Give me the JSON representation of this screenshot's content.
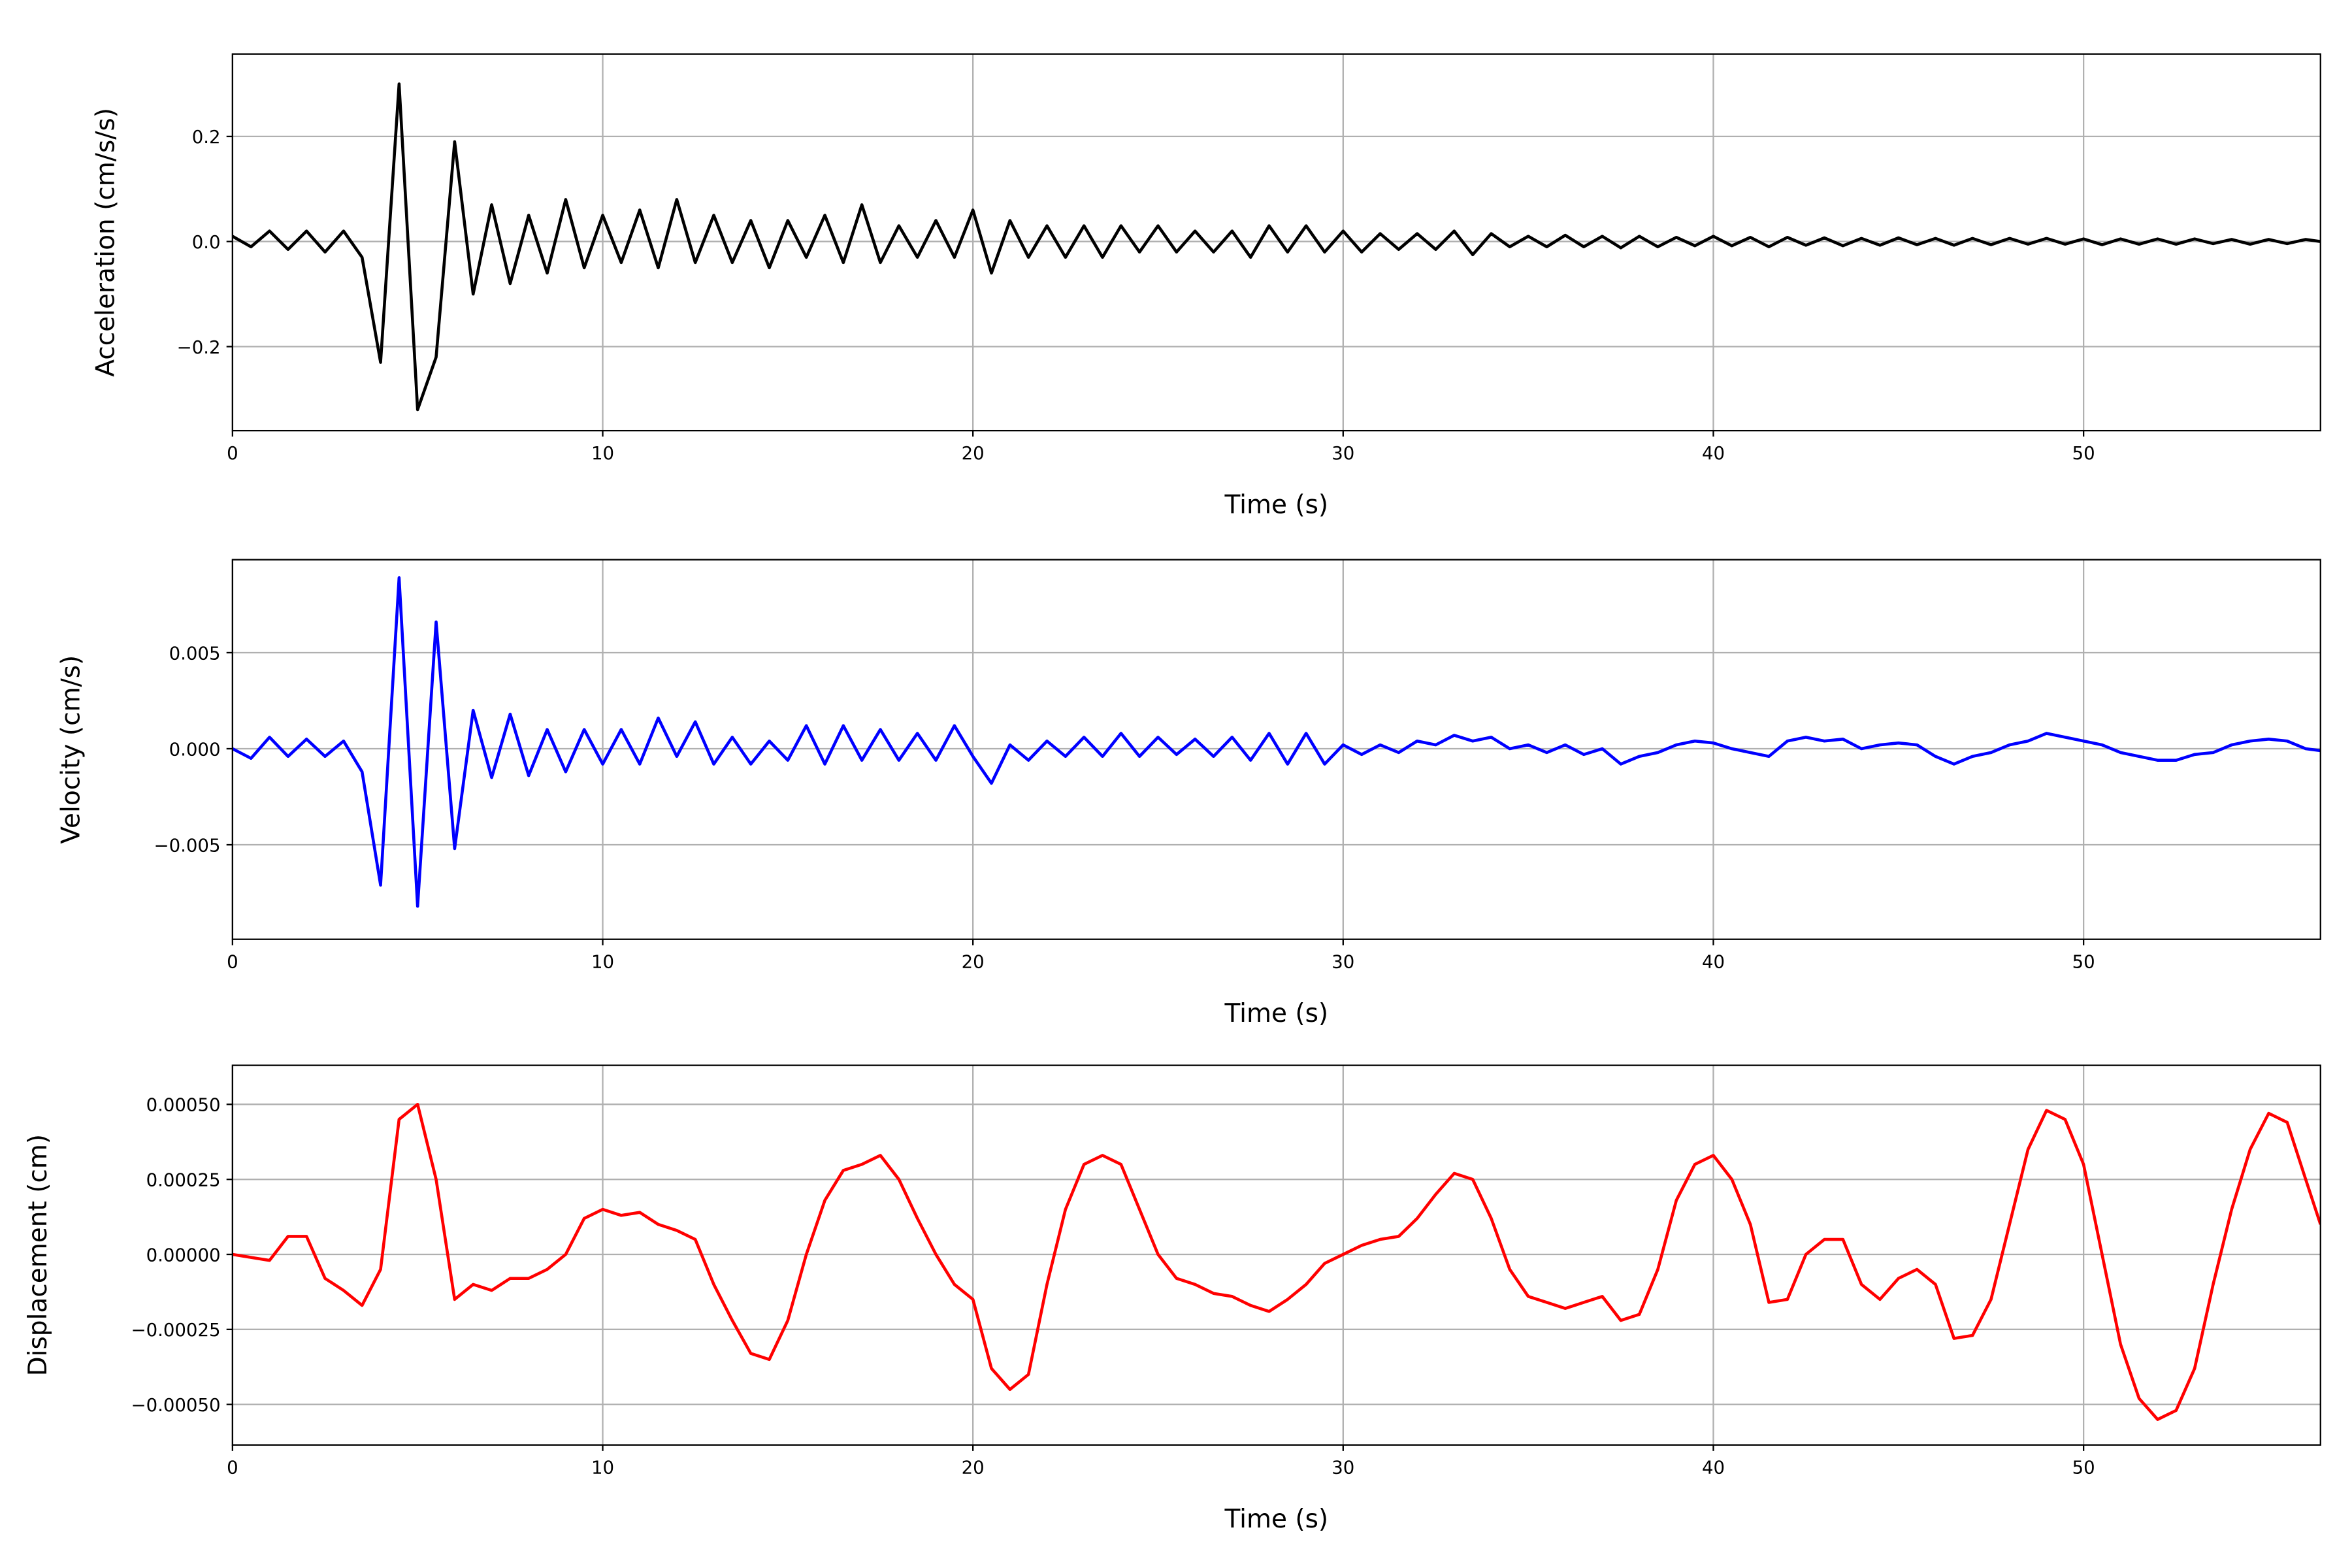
{
  "chart_data": [
    {
      "type": "line",
      "xlabel": "Time (s)",
      "ylabel": "Acceleration (cm/s/s)",
      "color": "#000000",
      "grid": true,
      "xlim": [
        0,
        56.4
      ],
      "xticks": [
        0,
        10,
        20,
        30,
        40,
        50
      ],
      "ylim": [
        -0.36,
        0.357
      ],
      "yticks": [
        {
          "value": -0.2,
          "label": "−0.2"
        },
        {
          "value": 0,
          "label": "0.0"
        },
        0.2
      ],
      "x": [
        0,
        0.5,
        1,
        1.5,
        2,
        2.5,
        3,
        3.5,
        4,
        4.5,
        5,
        5.5,
        6,
        6.5,
        7,
        7.5,
        8,
        8.5,
        9,
        9.5,
        10,
        10.5,
        11,
        11.5,
        12,
        12.5,
        13,
        13.5,
        14,
        14.5,
        15,
        15.5,
        16,
        16.5,
        17,
        17.5,
        18,
        18.5,
        19,
        19.5,
        20,
        20.5,
        21,
        21.5,
        22,
        22.5,
        23,
        23.5,
        24,
        24.5,
        25,
        25.5,
        26,
        26.5,
        27,
        27.5,
        28,
        28.5,
        29,
        29.5,
        30,
        30.5,
        31,
        31.5,
        32,
        32.5,
        33,
        33.5,
        34,
        34.5,
        35,
        35.5,
        36,
        36.5,
        37,
        37.5,
        38,
        38.5,
        39,
        39.5,
        40,
        40.5,
        41,
        41.5,
        42,
        42.5,
        43,
        43.5,
        44,
        44.5,
        45,
        45.5,
        46,
        46.5,
        47,
        47.5,
        48,
        48.5,
        49,
        49.5,
        50,
        50.5,
        51,
        51.5,
        52,
        52.5,
        53,
        53.5,
        54,
        54.5,
        55,
        55.5,
        56,
        56.4
      ],
      "values": [
        0.01,
        -0.01,
        0.02,
        -0.015,
        0.02,
        -0.02,
        0.02,
        -0.03,
        -0.23,
        0.3,
        -0.32,
        -0.22,
        0.19,
        -0.1,
        0.07,
        -0.08,
        0.05,
        -0.06,
        0.08,
        -0.05,
        0.05,
        -0.04,
        0.06,
        -0.05,
        0.08,
        -0.04,
        0.05,
        -0.04,
        0.04,
        -0.05,
        0.04,
        -0.03,
        0.05,
        -0.04,
        0.07,
        -0.04,
        0.03,
        -0.03,
        0.04,
        -0.03,
        0.06,
        -0.06,
        0.04,
        -0.03,
        0.03,
        -0.03,
        0.03,
        -0.03,
        0.03,
        -0.02,
        0.03,
        -0.02,
        0.02,
        -0.02,
        0.02,
        -0.03,
        0.03,
        -0.02,
        0.03,
        -0.02,
        0.02,
        -0.02,
        0.015,
        -0.015,
        0.015,
        -0.015,
        0.02,
        -0.025,
        0.015,
        -0.01,
        0.01,
        -0.01,
        0.012,
        -0.01,
        0.01,
        -0.012,
        0.01,
        -0.01,
        0.008,
        -0.008,
        0.01,
        -0.008,
        0.008,
        -0.01,
        0.008,
        -0.007,
        0.007,
        -0.008,
        0.006,
        -0.007,
        0.007,
        -0.006,
        0.006,
        -0.007,
        0.006,
        -0.006,
        0.006,
        -0.005,
        0.006,
        -0.005,
        0.005,
        -0.006,
        0.005,
        -0.005,
        0.005,
        -0.005,
        0.005,
        -0.004,
        0.004,
        -0.005,
        0.004,
        -0.004,
        0.004,
        0.0
      ]
    },
    {
      "type": "line",
      "xlabel": "Time (s)",
      "ylabel": "Velocity (cm/s)",
      "color": "#0000ff",
      "grid": true,
      "xlim": [
        0,
        56.4
      ],
      "xticks": [
        0,
        10,
        20,
        30,
        40,
        50
      ],
      "ylim": [
        -0.00992,
        0.00984
      ],
      "yticks": [
        {
          "value": -0.005,
          "label": "−0.005"
        },
        {
          "value": 0,
          "label": "0.000"
        },
        0.005
      ],
      "x": [
        0,
        0.5,
        1,
        1.5,
        2,
        2.5,
        3,
        3.5,
        4,
        4.5,
        5,
        5.5,
        6,
        6.5,
        7,
        7.5,
        8,
        8.5,
        9,
        9.5,
        10,
        10.5,
        11,
        11.5,
        12,
        12.5,
        13,
        13.5,
        14,
        14.5,
        15,
        15.5,
        16,
        16.5,
        17,
        17.5,
        18,
        18.5,
        19,
        19.5,
        20,
        20.5,
        21,
        21.5,
        22,
        22.5,
        23,
        23.5,
        24,
        24.5,
        25,
        25.5,
        26,
        26.5,
        27,
        27.5,
        28,
        28.5,
        29,
        29.5,
        30,
        30.5,
        31,
        31.5,
        32,
        32.5,
        33,
        33.5,
        34,
        34.5,
        35,
        35.5,
        36,
        36.5,
        37,
        37.5,
        38,
        38.5,
        39,
        39.5,
        40,
        40.5,
        41,
        41.5,
        42,
        42.5,
        43,
        43.5,
        44,
        44.5,
        45,
        45.5,
        46,
        46.5,
        47,
        47.5,
        48,
        48.5,
        49,
        49.5,
        50,
        50.5,
        51,
        51.5,
        52,
        52.5,
        53,
        53.5,
        54,
        54.5,
        55,
        55.5,
        56,
        56.4
      ],
      "values": [
        0.0,
        -0.0005,
        0.0006,
        -0.0004,
        0.0005,
        -0.0004,
        0.0004,
        -0.0012,
        -0.0071,
        0.0089,
        -0.0082,
        0.0066,
        -0.0052,
        0.002,
        -0.0015,
        0.0018,
        -0.0014,
        0.001,
        -0.0012,
        0.001,
        -0.0008,
        0.001,
        -0.0008,
        0.0016,
        -0.0004,
        0.0014,
        -0.0008,
        0.0006,
        -0.0008,
        0.0004,
        -0.0006,
        0.0012,
        -0.0008,
        0.0012,
        -0.0006,
        0.001,
        -0.0006,
        0.0008,
        -0.0006,
        0.0012,
        -0.0004,
        -0.0018,
        0.0002,
        -0.0006,
        0.0004,
        -0.0004,
        0.0006,
        -0.0004,
        0.0008,
        -0.0004,
        0.0006,
        -0.0003,
        0.0005,
        -0.0004,
        0.0006,
        -0.0006,
        0.0008,
        -0.0008,
        0.0008,
        -0.0008,
        0.0002,
        -0.0003,
        0.0002,
        -0.0002,
        0.0004,
        0.0002,
        0.0007,
        0.0004,
        0.0006,
        0.0,
        0.0002,
        -0.0002,
        0.0002,
        -0.0003,
        0.0,
        -0.0008,
        -0.0004,
        -0.0002,
        0.0002,
        0.0004,
        0.0003,
        0.0,
        -0.0002,
        -0.0004,
        0.0004,
        0.0006,
        0.0004,
        0.0005,
        0.0,
        0.0002,
        0.0003,
        0.0002,
        -0.0004,
        -0.0008,
        -0.0004,
        -0.0002,
        0.0002,
        0.0004,
        0.0008,
        0.0006,
        0.0004,
        0.0002,
        -0.0002,
        -0.0004,
        -0.0006,
        -0.0006,
        -0.0003,
        -0.0002,
        0.0002,
        0.0004,
        0.0005,
        0.0004,
        0.0,
        -0.0001
      ]
    },
    {
      "type": "line",
      "xlabel": "Time (s)",
      "ylabel": "Displacement (cm)",
      "color": "#ff0000",
      "grid": true,
      "xlim": [
        0,
        56.4
      ],
      "xticks": [
        0,
        10,
        20,
        30,
        40,
        50
      ],
      "ylim": [
        -0.000635,
        0.00063
      ],
      "yticks": [
        {
          "value": -0.0005,
          "label": "−0.00050"
        },
        {
          "value": -0.00025,
          "label": "−0.00025"
        },
        {
          "value": 0,
          "label": "0.00000"
        },
        {
          "value": 0.00025,
          "label": "0.00025"
        },
        {
          "value": 0.0005,
          "label": "0.00050"
        }
      ],
      "x": [
        0,
        0.5,
        1,
        1.5,
        2,
        2.5,
        3,
        3.5,
        4,
        4.5,
        5,
        5.5,
        6,
        6.5,
        7,
        7.5,
        8,
        8.5,
        9,
        9.5,
        10,
        10.5,
        11,
        11.5,
        12,
        12.5,
        13,
        13.5,
        14,
        14.5,
        15,
        15.5,
        16,
        16.5,
        17,
        17.5,
        18,
        18.5,
        19,
        19.5,
        20,
        20.5,
        21,
        21.5,
        22,
        22.5,
        23,
        23.5,
        24,
        24.5,
        25,
        25.5,
        26,
        26.5,
        27,
        27.5,
        28,
        28.5,
        29,
        29.5,
        30,
        30.5,
        31,
        31.5,
        32,
        32.5,
        33,
        33.5,
        34,
        34.5,
        35,
        35.5,
        36,
        36.5,
        37,
        37.5,
        38,
        38.5,
        39,
        39.5,
        40,
        40.5,
        41,
        41.5,
        42,
        42.5,
        43,
        43.5,
        44,
        44.5,
        45,
        45.5,
        46,
        46.5,
        47,
        47.5,
        48,
        48.5,
        49,
        49.5,
        50,
        50.5,
        51,
        51.5,
        52,
        52.5,
        53,
        53.5,
        54,
        54.5,
        55,
        55.5,
        56,
        56.4
      ],
      "values": [
        0.0,
        -1e-05,
        -2e-05,
        6e-05,
        6e-05,
        -8e-05,
        -0.00012,
        -0.00017,
        -5e-05,
        0.00045,
        0.0005,
        0.00025,
        -0.00015,
        -0.0001,
        -0.00012,
        -8e-05,
        -8e-05,
        -5e-05,
        0.0,
        0.00012,
        0.00015,
        0.00013,
        0.00014,
        0.0001,
        8e-05,
        5e-05,
        -0.0001,
        -0.00022,
        -0.00033,
        -0.00035,
        -0.00022,
        0.0,
        0.00018,
        0.00028,
        0.0003,
        0.00033,
        0.00025,
        0.00012,
        0.0,
        -0.0001,
        -0.00015,
        -0.00038,
        -0.00045,
        -0.0004,
        -0.0001,
        0.00015,
        0.0003,
        0.00033,
        0.0003,
        0.00015,
        0.0,
        -8e-05,
        -0.0001,
        -0.00013,
        -0.00014,
        -0.00017,
        -0.00019,
        -0.00015,
        -0.0001,
        -3e-05,
        0.0,
        3e-05,
        5e-05,
        6e-05,
        0.00012,
        0.0002,
        0.00027,
        0.00025,
        0.00012,
        -5e-05,
        -0.00014,
        -0.00016,
        -0.00018,
        -0.00016,
        -0.00014,
        -0.00022,
        -0.0002,
        -5e-05,
        0.00018,
        0.0003,
        0.00033,
        0.00025,
        0.0001,
        -0.00016,
        -0.00015,
        0.0,
        5e-05,
        5e-05,
        -0.0001,
        -0.00015,
        -8e-05,
        -5e-05,
        -0.0001,
        -0.00028,
        -0.00027,
        -0.00015,
        0.0001,
        0.00035,
        0.00048,
        0.00045,
        0.0003,
        0.0,
        -0.0003,
        -0.00048,
        -0.00055,
        -0.00052,
        -0.00038,
        -0.0001,
        0.00015,
        0.00035,
        0.00047,
        0.00044,
        0.00025,
        0.0001
      ]
    }
  ]
}
